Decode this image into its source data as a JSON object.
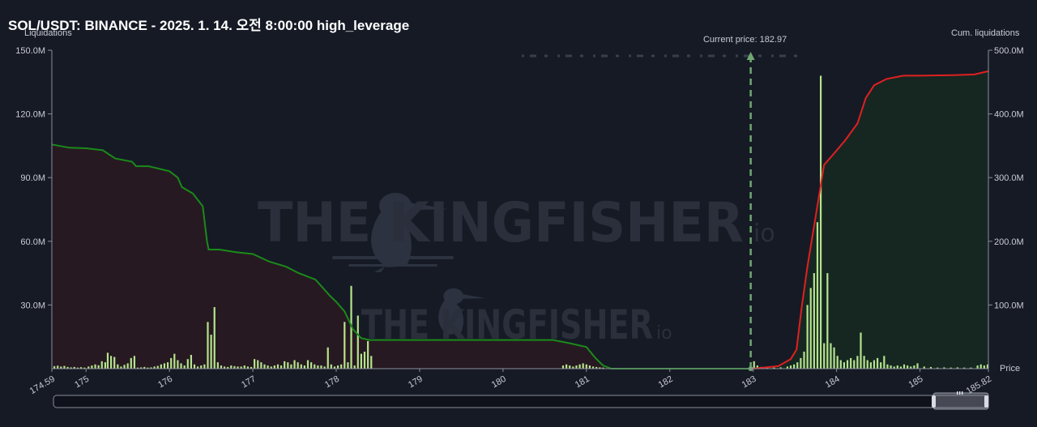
{
  "title": "SOL/USDT: BINANCE - 2025. 1. 14. 오전 8:00:00 high_leverage",
  "watermark": {
    "brand": "THE KINGFISHER",
    "suffix": "io"
  },
  "current_price_label": "Current price: 182.97",
  "colors": {
    "background": "#161a25",
    "bar": "#b5e48c",
    "short_cum_line": "#1a8a1a",
    "long_cum_line": "#e02020",
    "short_fill": "#2a1a22",
    "long_fill": "#162a22",
    "current_price": "#6fa872"
  },
  "chart_data": {
    "type": "bar",
    "title": "SOL/USDT: BINANCE - 2025. 1. 14. 오전 8:00:00 high_leverage",
    "xlabel": "Price",
    "ylabel_left": "Liquidations",
    "ylabel_right": "Cum. liquidations",
    "xlim": [
      174.59,
      185.82
    ],
    "ylim_left": [
      0,
      150
    ],
    "ylim_right": [
      0,
      500
    ],
    "y_left_unit": "M",
    "y_right_unit": "M",
    "x_ticks": [
      "174.59",
      "175",
      "176",
      "177",
      "178",
      "179",
      "180",
      "181",
      "182",
      "183",
      "184",
      "185",
      "185.82"
    ],
    "y_left_ticks": [
      "150.0M",
      "120.0M",
      "90.0M",
      "60.0M",
      "30.0M"
    ],
    "y_right_ticks": [
      "500.0M",
      "400.0M",
      "300.0M",
      "200.0M",
      "100.0M"
    ],
    "current_price": 182.97,
    "grid": false,
    "bars": [
      [
        174.62,
        1.2
      ],
      [
        174.66,
        1.4
      ],
      [
        174.7,
        1.0
      ],
      [
        174.74,
        1.3
      ],
      [
        174.78,
        0.8
      ],
      [
        174.82,
        0.6
      ],
      [
        174.86,
        0.8
      ],
      [
        174.9,
        0.5
      ],
      [
        174.94,
        0.7
      ],
      [
        174.98,
        0.5
      ],
      [
        175.03,
        1.0
      ],
      [
        175.07,
        1.5
      ],
      [
        175.11,
        2.0
      ],
      [
        175.15,
        1.6
      ],
      [
        175.19,
        3.5
      ],
      [
        175.23,
        3.0
      ],
      [
        175.26,
        7.5
      ],
      [
        175.3,
        6.0
      ],
      [
        175.34,
        5.5
      ],
      [
        175.38,
        2.0
      ],
      [
        175.42,
        1.0
      ],
      [
        175.46,
        1.8
      ],
      [
        175.5,
        2.5
      ],
      [
        175.54,
        5.0
      ],
      [
        175.58,
        6.0
      ],
      [
        175.62,
        0.5
      ],
      [
        175.66,
        0.6
      ],
      [
        175.7,
        0.8
      ],
      [
        175.74,
        0.5
      ],
      [
        175.78,
        0.6
      ],
      [
        175.82,
        1.0
      ],
      [
        175.86,
        1.3
      ],
      [
        175.9,
        2.0
      ],
      [
        175.94,
        2.5
      ],
      [
        175.98,
        3.0
      ],
      [
        176.02,
        5.0
      ],
      [
        176.06,
        7.0
      ],
      [
        176.1,
        4.0
      ],
      [
        176.14,
        2.5
      ],
      [
        176.18,
        1.5
      ],
      [
        176.22,
        4.5
      ],
      [
        176.26,
        6.5
      ],
      [
        176.3,
        2.0
      ],
      [
        176.34,
        1.0
      ],
      [
        176.38,
        1.5
      ],
      [
        176.42,
        2.0
      ],
      [
        176.46,
        22.0
      ],
      [
        176.5,
        16.0
      ],
      [
        176.54,
        29.0
      ],
      [
        176.58,
        3.0
      ],
      [
        176.62,
        1.5
      ],
      [
        176.66,
        1.0
      ],
      [
        176.7,
        0.8
      ],
      [
        176.74,
        1.5
      ],
      [
        176.78,
        1.2
      ],
      [
        176.82,
        1.0
      ],
      [
        176.86,
        1.0
      ],
      [
        176.9,
        1.5
      ],
      [
        176.94,
        1.0
      ],
      [
        176.98,
        0.8
      ],
      [
        177.02,
        4.5
      ],
      [
        177.06,
        4.0
      ],
      [
        177.1,
        3.0
      ],
      [
        177.14,
        2.0
      ],
      [
        177.18,
        1.5
      ],
      [
        177.22,
        1.0
      ],
      [
        177.26,
        1.5
      ],
      [
        177.3,
        2.0
      ],
      [
        177.34,
        1.5
      ],
      [
        177.38,
        3.5
      ],
      [
        177.42,
        3.0
      ],
      [
        177.46,
        2.0
      ],
      [
        177.5,
        4.0
      ],
      [
        177.54,
        3.0
      ],
      [
        177.58,
        2.0
      ],
      [
        177.62,
        1.5
      ],
      [
        177.66,
        4.0
      ],
      [
        177.7,
        3.0
      ],
      [
        177.74,
        2.0
      ],
      [
        177.78,
        1.5
      ],
      [
        177.82,
        1.5
      ],
      [
        177.86,
        1.0
      ],
      [
        177.9,
        10.0
      ],
      [
        177.94,
        2.0
      ],
      [
        177.98,
        1.0
      ],
      [
        178.02,
        1.5
      ],
      [
        178.06,
        2.0
      ],
      [
        178.1,
        22.0
      ],
      [
        178.14,
        3.0
      ],
      [
        178.18,
        39.0
      ],
      [
        178.22,
        1.5
      ],
      [
        178.26,
        25.0
      ],
      [
        178.3,
        7.0
      ],
      [
        178.34,
        8.0
      ],
      [
        178.38,
        13.0
      ],
      [
        178.42,
        6.0
      ],
      [
        180.72,
        1.5
      ],
      [
        180.76,
        2.0
      ],
      [
        180.8,
        1.5
      ],
      [
        180.84,
        1.0
      ],
      [
        180.88,
        1.5
      ],
      [
        180.92,
        2.0
      ],
      [
        180.96,
        2.5
      ],
      [
        181.0,
        2.0
      ],
      [
        181.04,
        1.5
      ],
      [
        181.08,
        1.0
      ],
      [
        181.12,
        0.8
      ],
      [
        181.16,
        0.6
      ],
      [
        181.2,
        0.5
      ],
      [
        183.01,
        3.5
      ],
      [
        183.05,
        1.5
      ],
      [
        183.09,
        0.8
      ],
      [
        183.13,
        0.5
      ],
      [
        183.17,
        0.6
      ],
      [
        183.25,
        0.5
      ],
      [
        183.33,
        0.6
      ],
      [
        183.41,
        1.0
      ],
      [
        183.45,
        1.5
      ],
      [
        183.49,
        2.0
      ],
      [
        183.53,
        3.0
      ],
      [
        183.57,
        5.0
      ],
      [
        183.61,
        8.0
      ],
      [
        183.65,
        30.0
      ],
      [
        183.69,
        38.0
      ],
      [
        183.73,
        45.0
      ],
      [
        183.77,
        69.0
      ],
      [
        183.81,
        138.0
      ],
      [
        183.85,
        12.0
      ],
      [
        183.89,
        45.0
      ],
      [
        183.93,
        12.0
      ],
      [
        183.97,
        10.0
      ],
      [
        184.01,
        6.0
      ],
      [
        184.05,
        4.0
      ],
      [
        184.09,
        3.0
      ],
      [
        184.13,
        4.0
      ],
      [
        184.17,
        5.0
      ],
      [
        184.21,
        4.0
      ],
      [
        184.25,
        6.0
      ],
      [
        184.29,
        17.0
      ],
      [
        184.33,
        6.0
      ],
      [
        184.37,
        4.0
      ],
      [
        184.41,
        3.0
      ],
      [
        184.45,
        4.0
      ],
      [
        184.49,
        5.0
      ],
      [
        184.53,
        3.0
      ],
      [
        184.57,
        6.0
      ],
      [
        184.61,
        2.0
      ],
      [
        184.65,
        1.5
      ],
      [
        184.69,
        1.0
      ],
      [
        184.73,
        1.5
      ],
      [
        184.77,
        1.0
      ],
      [
        184.81,
        2.0
      ],
      [
        184.85,
        1.5
      ],
      [
        184.89,
        1.0
      ],
      [
        184.93,
        1.5
      ],
      [
        184.97,
        2.5
      ],
      [
        185.05,
        1.0
      ],
      [
        185.13,
        0.8
      ],
      [
        185.21,
        0.5
      ],
      [
        185.29,
        0.6
      ],
      [
        185.37,
        0.5
      ],
      [
        185.45,
        0.6
      ],
      [
        185.53,
        0.5
      ],
      [
        185.61,
        0.5
      ],
      [
        185.69,
        1.5
      ],
      [
        185.73,
        2.0
      ],
      [
        185.77,
        1.5
      ],
      [
        185.81,
        2.0
      ]
    ],
    "series": [
      {
        "side": "short",
        "axis": "right",
        "points": [
          [
            174.59,
            352
          ],
          [
            174.8,
            347
          ],
          [
            175.0,
            346
          ],
          [
            175.2,
            343
          ],
          [
            175.35,
            330
          ],
          [
            175.55,
            325
          ],
          [
            175.6,
            318
          ],
          [
            175.75,
            318
          ],
          [
            176.0,
            310
          ],
          [
            176.1,
            300
          ],
          [
            176.15,
            285
          ],
          [
            176.28,
            275
          ],
          [
            176.4,
            255
          ],
          [
            176.45,
            200
          ],
          [
            176.47,
            187
          ],
          [
            176.6,
            187
          ],
          [
            176.8,
            183
          ],
          [
            177.0,
            180
          ],
          [
            177.2,
            168
          ],
          [
            177.4,
            160
          ],
          [
            177.55,
            150
          ],
          [
            177.75,
            140
          ],
          [
            177.92,
            115
          ],
          [
            178.0,
            105
          ],
          [
            178.1,
            90
          ],
          [
            178.2,
            62
          ],
          [
            178.3,
            48
          ],
          [
            178.4,
            45
          ],
          [
            180.0,
            45
          ],
          [
            180.6,
            45
          ],
          [
            180.8,
            40
          ],
          [
            181.0,
            34
          ],
          [
            181.1,
            18
          ],
          [
            181.2,
            5
          ],
          [
            181.3,
            0
          ],
          [
            182.97,
            0
          ]
        ]
      },
      {
        "side": "long",
        "axis": "right",
        "points": [
          [
            183.0,
            0
          ],
          [
            183.3,
            4
          ],
          [
            183.45,
            15
          ],
          [
            183.52,
            30
          ],
          [
            183.58,
            95
          ],
          [
            183.65,
            160
          ],
          [
            183.75,
            240
          ],
          [
            183.85,
            320
          ],
          [
            183.95,
            335
          ],
          [
            184.1,
            358
          ],
          [
            184.25,
            385
          ],
          [
            184.35,
            425
          ],
          [
            184.45,
            445
          ],
          [
            184.6,
            455
          ],
          [
            184.8,
            460
          ],
          [
            185.0,
            460
          ],
          [
            185.4,
            461
          ],
          [
            185.65,
            462
          ],
          [
            185.82,
            467
          ]
        ]
      }
    ]
  }
}
